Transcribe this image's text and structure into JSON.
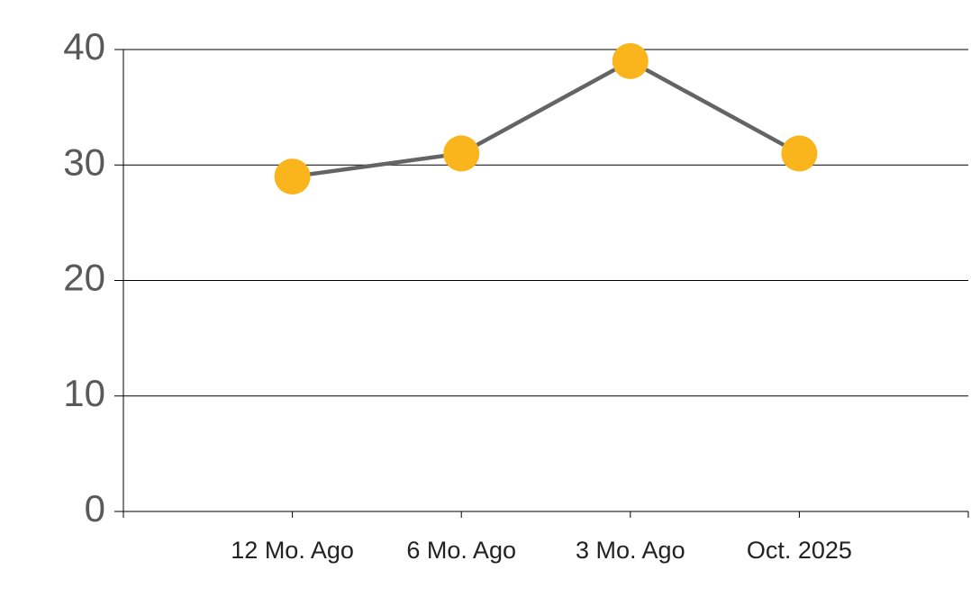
{
  "chart_data": {
    "type": "line",
    "categories": [
      "12 Mo. Ago",
      "6 Mo. Ago",
      "3 Mo. Ago",
      "Oct. 2025"
    ],
    "values": [
      29,
      31,
      39,
      31
    ],
    "line_color": "#646464",
    "marker_color": "#fbb51c",
    "ylim": [
      0,
      40
    ],
    "yticks": [
      0,
      10,
      20,
      30,
      40
    ],
    "grid": true
  }
}
